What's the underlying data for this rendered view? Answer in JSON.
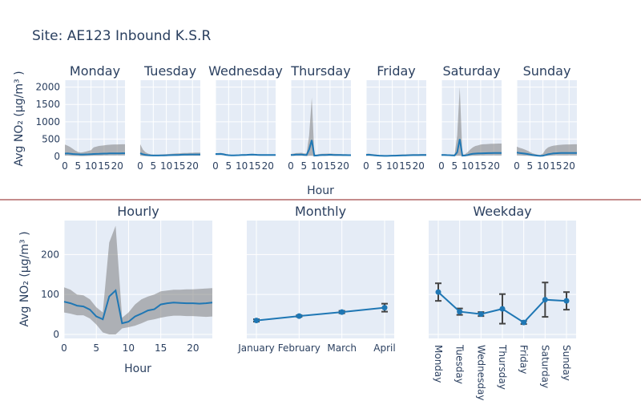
{
  "title": "Site: AE123 Inbound K.S.R",
  "colors": {
    "line": "#1f77b4",
    "band": "#808080",
    "panel": "#e5ecf6",
    "divider": "#8b1a1a",
    "errbar": "#444444"
  },
  "chart_data": [
    {
      "type": "line",
      "group": "day-facets",
      "ylabel": "Avg NO₂ (μg/m³ )",
      "xlabel": "Hour",
      "ylim": [
        0,
        2200
      ],
      "xlim": [
        0,
        23
      ],
      "yticks": [
        0,
        500,
        1000,
        1500,
        2000
      ],
      "xticks": [
        0,
        5,
        10,
        15,
        20
      ],
      "facets": [
        {
          "name": "Monday",
          "mean": [
            80,
            85,
            78,
            70,
            65,
            60,
            55,
            55,
            58,
            60,
            65,
            70,
            72,
            75,
            78,
            80,
            82,
            85,
            86,
            88,
            88,
            89,
            90,
            90
          ],
          "upper": [
            340,
            310,
            270,
            220,
            170,
            130,
            110,
            120,
            140,
            160,
            180,
            260,
            280,
            300,
            310,
            320,
            330,
            335,
            340,
            345,
            345,
            348,
            350,
            350
          ],
          "lower": [
            20,
            25,
            20,
            15,
            15,
            12,
            10,
            10,
            12,
            15,
            18,
            20,
            20,
            22,
            24,
            25,
            26,
            28,
            28,
            30,
            30,
            30,
            30,
            30
          ]
        },
        {
          "name": "Tuesday",
          "mean": [
            90,
            60,
            45,
            35,
            28,
            25,
            25,
            25,
            28,
            30,
            32,
            35,
            38,
            40,
            42,
            45,
            48,
            50,
            52,
            55,
            55,
            56,
            56,
            56
          ],
          "upper": [
            350,
            200,
            120,
            80,
            60,
            50,
            50,
            50,
            55,
            60,
            65,
            70,
            75,
            80,
            85,
            90,
            95,
            100,
            100,
            105,
            105,
            108,
            108,
            108
          ],
          "lower": [
            20,
            15,
            10,
            8,
            6,
            5,
            5,
            5,
            6,
            8,
            10,
            12,
            14,
            15,
            16,
            18,
            20,
            20,
            22,
            22,
            22,
            22,
            22,
            22
          ]
        },
        {
          "name": "Wednesday",
          "mean": [
            70,
            70,
            72,
            60,
            45,
            35,
            30,
            30,
            32,
            35,
            40,
            42,
            45,
            48,
            50,
            48,
            45,
            42,
            42,
            40,
            40,
            40,
            40,
            40
          ],
          "upper": [
            90,
            95,
            100,
            90,
            70,
            55,
            45,
            45,
            48,
            52,
            58,
            62,
            65,
            70,
            72,
            70,
            65,
            60,
            58,
            55,
            55,
            55,
            55,
            55
          ],
          "lower": [
            40,
            42,
            45,
            35,
            25,
            18,
            15,
            15,
            16,
            18,
            20,
            22,
            24,
            26,
            28,
            26,
            24,
            22,
            22,
            20,
            20,
            20,
            20,
            20
          ]
        },
        {
          "name": "Thursday",
          "mean": [
            40,
            45,
            50,
            52,
            55,
            45,
            40,
            200,
            470,
            20,
            25,
            35,
            40,
            42,
            45,
            48,
            45,
            42,
            42,
            40,
            38,
            36,
            35,
            35
          ],
          "upper": [
            70,
            80,
            95,
            100,
            105,
            90,
            80,
            600,
            1700,
            50,
            55,
            70,
            75,
            78,
            80,
            82,
            78,
            72,
            70,
            68,
            65,
            62,
            60,
            60
          ],
          "lower": [
            15,
            15,
            18,
            18,
            20,
            15,
            12,
            20,
            20,
            5,
            8,
            12,
            14,
            15,
            16,
            18,
            16,
            15,
            15,
            14,
            12,
            12,
            12,
            12
          ]
        },
        {
          "name": "Friday",
          "mean": [
            45,
            48,
            40,
            32,
            25,
            20,
            18,
            15,
            15,
            18,
            20,
            22,
            24,
            26,
            28,
            30,
            32,
            34,
            36,
            38,
            38,
            40,
            40,
            40
          ],
          "upper": [
            75,
            78,
            70,
            60,
            50,
            42,
            38,
            32,
            32,
            36,
            40,
            44,
            48,
            52,
            55,
            58,
            60,
            62,
            64,
            66,
            66,
            68,
            68,
            68
          ],
          "lower": [
            15,
            18,
            14,
            10,
            8,
            6,
            5,
            4,
            4,
            5,
            6,
            7,
            8,
            9,
            10,
            11,
            12,
            13,
            14,
            15,
            15,
            15,
            15,
            15
          ]
        },
        {
          "name": "Saturday",
          "mean": [
            40,
            42,
            38,
            35,
            30,
            28,
            120,
            500,
            20,
            25,
            40,
            60,
            75,
            80,
            85,
            88,
            90,
            92,
            95,
            96,
            98,
            100,
            100,
            100
          ],
          "upper": [
            60,
            65,
            60,
            55,
            50,
            48,
            600,
            2000,
            50,
            60,
            120,
            200,
            260,
            300,
            320,
            340,
            350,
            355,
            360,
            365,
            365,
            368,
            370,
            370
          ],
          "lower": [
            20,
            20,
            18,
            15,
            12,
            10,
            20,
            20,
            5,
            6,
            10,
            15,
            20,
            22,
            24,
            25,
            26,
            28,
            28,
            30,
            30,
            30,
            30,
            30
          ]
        },
        {
          "name": "Sunday",
          "mean": [
            110,
            100,
            90,
            80,
            70,
            55,
            40,
            30,
            20,
            15,
            20,
            40,
            60,
            75,
            85,
            90,
            95,
            98,
            100,
            100,
            100,
            100,
            100,
            100
          ],
          "upper": [
            280,
            250,
            230,
            200,
            170,
            130,
            90,
            70,
            50,
            40,
            80,
            200,
            260,
            290,
            310,
            320,
            330,
            335,
            340,
            345,
            345,
            348,
            350,
            350
          ],
          "lower": [
            30,
            28,
            25,
            22,
            20,
            15,
            10,
            8,
            5,
            4,
            6,
            12,
            18,
            22,
            25,
            28,
            30,
            30,
            30,
            30,
            30,
            30,
            30,
            30
          ]
        }
      ]
    },
    {
      "type": "line",
      "title": "Hourly",
      "xlabel": "Hour",
      "ylabel": "Avg NO₂ (μg/m³ )",
      "xlim": [
        0,
        23
      ],
      "ylim": [
        -10,
        285
      ],
      "xticks": [
        0,
        5,
        10,
        15,
        20
      ],
      "yticks": [
        0,
        100,
        200
      ],
      "mean": [
        82,
        78,
        72,
        70,
        62,
        45,
        38,
        95,
        110,
        28,
        32,
        45,
        52,
        60,
        63,
        75,
        78,
        80,
        79,
        78,
        78,
        77,
        78,
        80
      ],
      "upper": [
        118,
        112,
        100,
        98,
        88,
        68,
        55,
        230,
        272,
        42,
        55,
        75,
        88,
        95,
        100,
        108,
        110,
        112,
        112,
        113,
        113,
        114,
        115,
        116
      ],
      "lower": [
        55,
        52,
        48,
        48,
        40,
        25,
        5,
        0,
        0,
        15,
        18,
        22,
        28,
        35,
        38,
        42,
        45,
        47,
        47,
        46,
        46,
        45,
        44,
        45
      ]
    },
    {
      "type": "line",
      "title": "Monthly",
      "categories": [
        "January",
        "February",
        "March",
        "April"
      ],
      "values": [
        35,
        46,
        56,
        67
      ],
      "err": [
        3,
        2,
        3,
        10
      ],
      "ylim": [
        -10,
        285
      ]
    },
    {
      "type": "line",
      "title": "Weekday",
      "categories": [
        "Monday",
        "Tuesday",
        "Wednesday",
        "Thursday",
        "Friday",
        "Saturday",
        "Sunday"
      ],
      "values": [
        106,
        57,
        51,
        64,
        30,
        87,
        84
      ],
      "err": [
        22,
        8,
        5,
        37,
        4,
        43,
        22
      ],
      "ylim": [
        -10,
        285
      ]
    }
  ]
}
